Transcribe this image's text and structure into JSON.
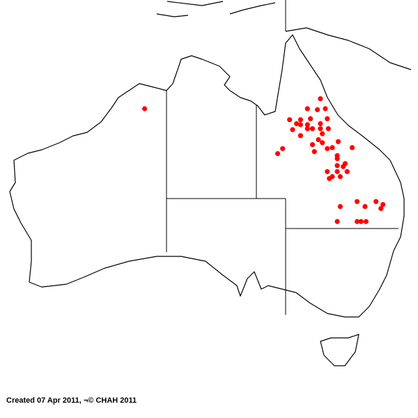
{
  "map": {
    "region": "Australia",
    "point_color": "#ff0000",
    "outline_color": "#000000",
    "occurrence_points_lon_lat": [
      [
        144.5,
        -16.0
      ],
      [
        143.2,
        -17.0
      ],
      [
        144.2,
        -17.1
      ],
      [
        145.0,
        -17.0
      ],
      [
        141.4,
        -18.1
      ],
      [
        142.5,
        -18.1
      ],
      [
        143.5,
        -18.0
      ],
      [
        145.2,
        -18.0
      ],
      [
        142.1,
        -18.5
      ],
      [
        142.5,
        -18.6
      ],
      [
        143.2,
        -18.6
      ],
      [
        143.7,
        -19.0
      ],
      [
        144.5,
        -18.5
      ],
      [
        143.2,
        -19.0
      ],
      [
        144.5,
        -19.0
      ],
      [
        145.3,
        -19.0
      ],
      [
        141.7,
        -19.1
      ],
      [
        144.7,
        -19.5
      ],
      [
        142.5,
        -19.7
      ],
      [
        144.3,
        -20.1
      ],
      [
        144.7,
        -20.4
      ],
      [
        146.3,
        -20.3
      ],
      [
        143.7,
        -20.6
      ],
      [
        143.9,
        -21.3
      ],
      [
        145.2,
        -21.0
      ],
      [
        145.7,
        -20.9
      ],
      [
        147.7,
        -20.9
      ],
      [
        140.7,
        -21.0
      ],
      [
        140.2,
        -21.5
      ],
      [
        146.2,
        -21.7
      ],
      [
        146.2,
        -22.0
      ],
      [
        146.2,
        -22.7
      ],
      [
        146.8,
        -22.8
      ],
      [
        147.0,
        -22.5
      ],
      [
        145.2,
        -23.3
      ],
      [
        146.2,
        -23.3
      ],
      [
        147.2,
        -23.3
      ],
      [
        145.7,
        -23.8
      ],
      [
        146.5,
        -23.8
      ],
      [
        145.4,
        -24.0
      ],
      [
        146.5,
        -26.8
      ],
      [
        148.2,
        -26.3
      ],
      [
        149.0,
        -26.8
      ],
      [
        150.1,
        -26.3
      ],
      [
        150.8,
        -26.6
      ],
      [
        150.6,
        -27.0
      ],
      [
        146.2,
        -28.3
      ],
      [
        148.2,
        -28.3
      ],
      [
        148.6,
        -28.3
      ],
      [
        149.1,
        -28.3
      ],
      [
        126.8,
        -17.0
      ]
    ]
  },
  "caption": "Created 07 Apr 2011, ¬© CHAH 2011"
}
